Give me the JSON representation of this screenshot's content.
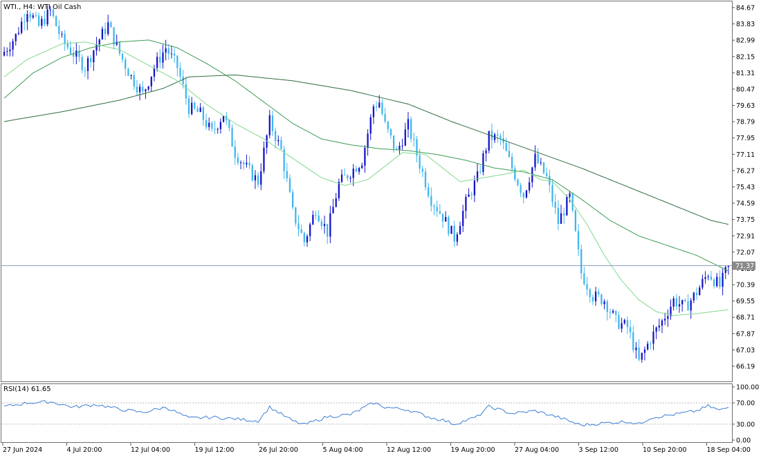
{
  "header": {
    "symbol": "WTI.",
    "timeframe": "H4",
    "instrument": "WTI Oil Cash"
  },
  "rsi": {
    "label": "RSI(14)",
    "value": "61.65"
  },
  "price_axis": {
    "ticks": [
      "84.67",
      "83.83",
      "82.99",
      "82.15",
      "81.31",
      "80.47",
      "79.63",
      "78.79",
      "77.95",
      "77.11",
      "76.27",
      "75.43",
      "74.59",
      "73.75",
      "72.91",
      "72.07",
      "71.23",
      "70.39",
      "69.55",
      "68.71",
      "67.87",
      "67.03",
      "66.19"
    ]
  },
  "current_price": "71.37",
  "rsi_axis": {
    "ticks": [
      "100.00",
      "70.00",
      "30.00",
      "0.00"
    ],
    "levels": [
      70,
      30
    ]
  },
  "time_axis": {
    "labels": [
      "27 Jun 2024",
      "4 Jul 20:00",
      "12 Jul 04:00",
      "19 Jul 12:00",
      "26 Jul 20:00",
      "5 Aug 04:00",
      "12 Aug 12:00",
      "19 Aug 20:00",
      "27 Aug 04:00",
      "3 Sep 12:00",
      "10 Sep 20:00",
      "18 Sep 04:00"
    ]
  },
  "colors": {
    "bull": "#1414c8",
    "bear": "#3fb6ee",
    "ma_fast": "#7fd88e",
    "ma_mid": "#3c9b55",
    "ma_slow": "#2e6b3e",
    "rsi_line": "#3a7fd5",
    "price_line": "#8e9fc2",
    "price_tag": "#8a8a8a"
  },
  "chart_data": {
    "type": "candlestick",
    "title": "WTI., H4: WTI Oil Cash",
    "ylim": [
      65.6,
      85.0
    ],
    "close_path": [
      [
        0,
        82.4
      ],
      [
        4,
        83.2
      ],
      [
        8,
        84.6
      ],
      [
        12,
        83.7
      ],
      [
        16,
        84.5
      ],
      [
        20,
        83.0
      ],
      [
        24,
        82.3
      ],
      [
        28,
        81.6
      ],
      [
        32,
        82.8
      ],
      [
        36,
        83.8
      ],
      [
        40,
        82.3
      ],
      [
        44,
        81.1
      ],
      [
        48,
        80.2
      ],
      [
        52,
        81.6
      ],
      [
        56,
        82.6
      ],
      [
        60,
        81.6
      ],
      [
        64,
        79.5
      ],
      [
        68,
        79.2
      ],
      [
        72,
        78.2
      ],
      [
        76,
        79.2
      ],
      [
        80,
        77.2
      ],
      [
        84,
        76.4
      ],
      [
        88,
        75.7
      ],
      [
        92,
        78.8
      ],
      [
        96,
        77.3
      ],
      [
        100,
        74.1
      ],
      [
        104,
        72.6
      ],
      [
        108,
        74.3
      ],
      [
        112,
        73.1
      ],
      [
        116,
        75.6
      ],
      [
        120,
        76.2
      ],
      [
        124,
        76.8
      ],
      [
        128,
        79.6
      ],
      [
        130,
        79.8
      ],
      [
        132,
        78.6
      ],
      [
        136,
        77.2
      ],
      [
        140,
        78.6
      ],
      [
        144,
        76.6
      ],
      [
        148,
        74.8
      ],
      [
        152,
        73.9
      ],
      [
        156,
        72.8
      ],
      [
        160,
        74.6
      ],
      [
        164,
        75.9
      ],
      [
        168,
        78.0
      ],
      [
        172,
        77.9
      ],
      [
        176,
        76.4
      ],
      [
        180,
        75.0
      ],
      [
        184,
        76.9
      ],
      [
        188,
        75.9
      ],
      [
        192,
        73.6
      ],
      [
        196,
        74.9
      ],
      [
        200,
        71.0
      ],
      [
        204,
        69.8
      ],
      [
        208,
        69.6
      ],
      [
        212,
        68.5
      ],
      [
        216,
        68.2
      ],
      [
        220,
        66.4
      ],
      [
        224,
        67.6
      ],
      [
        228,
        68.5
      ],
      [
        232,
        69.6
      ],
      [
        236,
        69.2
      ],
      [
        240,
        70.0
      ],
      [
        244,
        71.0
      ],
      [
        248,
        70.3
      ],
      [
        251,
        71.37
      ]
    ],
    "candle_count": 252,
    "sma_fast": [
      [
        0,
        81.1
      ],
      [
        8,
        82.0
      ],
      [
        20,
        82.8
      ],
      [
        28,
        82.9
      ],
      [
        40,
        82.5
      ],
      [
        50,
        81.7
      ],
      [
        60,
        80.9
      ],
      [
        70,
        79.7
      ],
      [
        80,
        78.7
      ],
      [
        90,
        77.9
      ],
      [
        100,
        76.9
      ],
      [
        110,
        75.9
      ],
      [
        118,
        75.5
      ],
      [
        126,
        75.8
      ],
      [
        132,
        76.5
      ],
      [
        138,
        77.2
      ],
      [
        146,
        77.1
      ],
      [
        152,
        76.4
      ],
      [
        158,
        75.7
      ],
      [
        166,
        75.9
      ],
      [
        174,
        76.1
      ],
      [
        180,
        76.3
      ],
      [
        186,
        75.8
      ],
      [
        190,
        75.7
      ],
      [
        196,
        74.8
      ],
      [
        202,
        73.5
      ],
      [
        208,
        71.9
      ],
      [
        214,
        70.6
      ],
      [
        220,
        69.6
      ],
      [
        226,
        69.0
      ],
      [
        232,
        68.8
      ],
      [
        240,
        68.9
      ],
      [
        251,
        69.1
      ]
    ],
    "sma_mid": [
      [
        0,
        80.0
      ],
      [
        10,
        81.3
      ],
      [
        20,
        82.1
      ],
      [
        30,
        82.6
      ],
      [
        40,
        82.9
      ],
      [
        50,
        83.0
      ],
      [
        60,
        82.6
      ],
      [
        70,
        81.8
      ],
      [
        80,
        80.9
      ],
      [
        90,
        79.8
      ],
      [
        100,
        78.7
      ],
      [
        110,
        77.9
      ],
      [
        120,
        77.6
      ],
      [
        130,
        77.4
      ],
      [
        140,
        77.3
      ],
      [
        150,
        77.1
      ],
      [
        160,
        76.8
      ],
      [
        170,
        76.4
      ],
      [
        180,
        76.2
      ],
      [
        190,
        75.8
      ],
      [
        200,
        74.8
      ],
      [
        210,
        73.7
      ],
      [
        220,
        72.9
      ],
      [
        230,
        72.4
      ],
      [
        240,
        71.9
      ],
      [
        251,
        71.1
      ]
    ],
    "sma_slow": [
      [
        0,
        78.8
      ],
      [
        20,
        79.3
      ],
      [
        40,
        79.9
      ],
      [
        55,
        80.5
      ],
      [
        64,
        81.1
      ],
      [
        80,
        81.2
      ],
      [
        100,
        80.9
      ],
      [
        120,
        80.4
      ],
      [
        140,
        79.7
      ],
      [
        155,
        78.8
      ],
      [
        170,
        78.0
      ],
      [
        185,
        77.2
      ],
      [
        200,
        76.4
      ],
      [
        215,
        75.5
      ],
      [
        230,
        74.6
      ],
      [
        245,
        73.7
      ],
      [
        251,
        73.5
      ]
    ],
    "rsi_path": [
      [
        0,
        63
      ],
      [
        8,
        70
      ],
      [
        16,
        72
      ],
      [
        24,
        62
      ],
      [
        32,
        67
      ],
      [
        40,
        58
      ],
      [
        48,
        52
      ],
      [
        56,
        62
      ],
      [
        64,
        41
      ],
      [
        72,
        43
      ],
      [
        80,
        40
      ],
      [
        88,
        36
      ],
      [
        92,
        62
      ],
      [
        100,
        36
      ],
      [
        104,
        29
      ],
      [
        112,
        44
      ],
      [
        120,
        48
      ],
      [
        128,
        70
      ],
      [
        132,
        62
      ],
      [
        140,
        57
      ],
      [
        148,
        42
      ],
      [
        152,
        38
      ],
      [
        156,
        30
      ],
      [
        164,
        44
      ],
      [
        168,
        63
      ],
      [
        176,
        50
      ],
      [
        184,
        55
      ],
      [
        192,
        43
      ],
      [
        200,
        28
      ],
      [
        208,
        32
      ],
      [
        216,
        35
      ],
      [
        220,
        30
      ],
      [
        224,
        42
      ],
      [
        232,
        48
      ],
      [
        240,
        55
      ],
      [
        244,
        64
      ],
      [
        248,
        56
      ],
      [
        251,
        61.65
      ]
    ]
  }
}
